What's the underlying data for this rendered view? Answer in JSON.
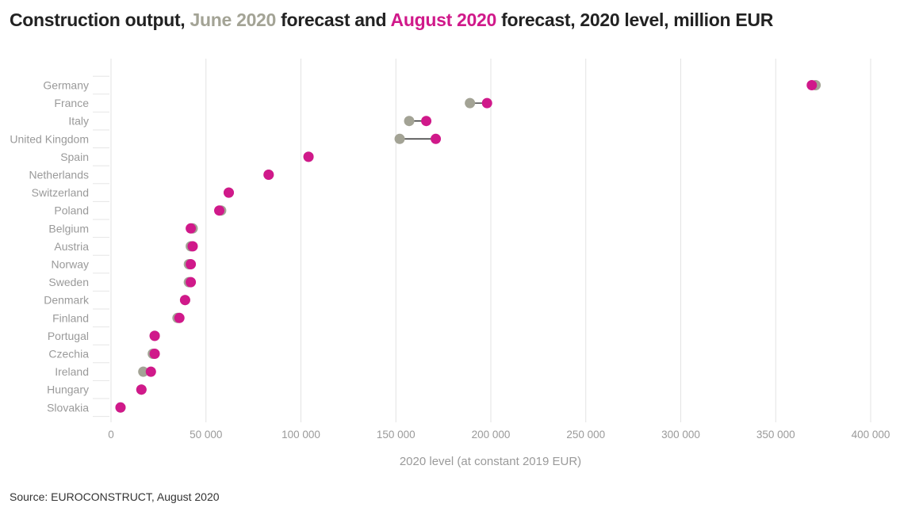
{
  "header": {
    "title_part1": "Construction output, ",
    "title_june": "June 2020",
    "title_part2": " forecast and ",
    "title_august": "August 2020",
    "title_part3": " forecast, 2020 level, million EUR"
  },
  "footer": {
    "source": "Source: EUROCONSTRUCT, August 2020"
  },
  "colors": {
    "june": "#a3a395",
    "august": "#d0198a",
    "connector": "#222222",
    "grid": "#e3e3e3"
  },
  "chart_data": {
    "type": "dumbbell",
    "title": "Construction output, June 2020 forecast and August 2020 forecast, 2020 level, million EUR",
    "xlabel": "2020 level (at constant 2019 EUR)",
    "ylabel": "",
    "xlim": [
      0,
      400000
    ],
    "xticks": [
      0,
      50000,
      100000,
      150000,
      200000,
      250000,
      300000,
      350000,
      400000
    ],
    "xtick_labels": [
      "0",
      "50 000",
      "100 000",
      "150 000",
      "200 000",
      "250 000",
      "300 000",
      "350 000",
      "400 000"
    ],
    "categories": [
      "Germany",
      "France",
      "Italy",
      "United Kingdom",
      "Spain",
      "Netherlands",
      "Switzerland",
      "Poland",
      "Belgium",
      "Austria",
      "Norway",
      "Sweden",
      "Denmark",
      "Finland",
      "Portugal",
      "Czechia",
      "Ireland",
      "Hungary",
      "Slovakia"
    ],
    "series": [
      {
        "name": "June 2020",
        "values": [
          371000,
          189000,
          157000,
          152000,
          104000,
          83000,
          62000,
          58000,
          43000,
          42000,
          41000,
          41000,
          39000,
          35000,
          23000,
          22000,
          17000,
          16000,
          5000
        ]
      },
      {
        "name": "August 2020",
        "values": [
          369000,
          198000,
          166000,
          171000,
          104000,
          83000,
          62000,
          57000,
          42000,
          43000,
          42000,
          42000,
          39000,
          36000,
          23000,
          23000,
          21000,
          16000,
          5000
        ]
      }
    ]
  }
}
